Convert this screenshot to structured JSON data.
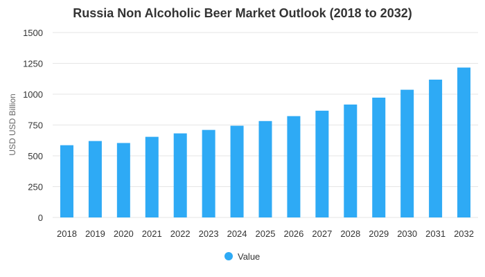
{
  "chart_data": {
    "type": "bar",
    "title": "Russia Non Alcoholic Beer Market Outlook (2018 to 2032)",
    "xlabel": "",
    "ylabel": "USD USD Billion",
    "categories": [
      "2018",
      "2019",
      "2020",
      "2021",
      "2022",
      "2023",
      "2024",
      "2025",
      "2026",
      "2027",
      "2028",
      "2029",
      "2030",
      "2031",
      "2032"
    ],
    "series": [
      {
        "name": "Value",
        "color": "#2eaaf5",
        "values": [
          586,
          620,
          604,
          654,
          682,
          710,
          744,
          782,
          822,
          866,
          916,
          972,
          1036,
          1118,
          1216
        ]
      }
    ],
    "ylim": [
      0,
      1500
    ],
    "yticks": [
      "0",
      "250",
      "500",
      "750",
      "1000",
      "1250",
      "1500"
    ],
    "grid": true,
    "legend_position": "bottom"
  }
}
